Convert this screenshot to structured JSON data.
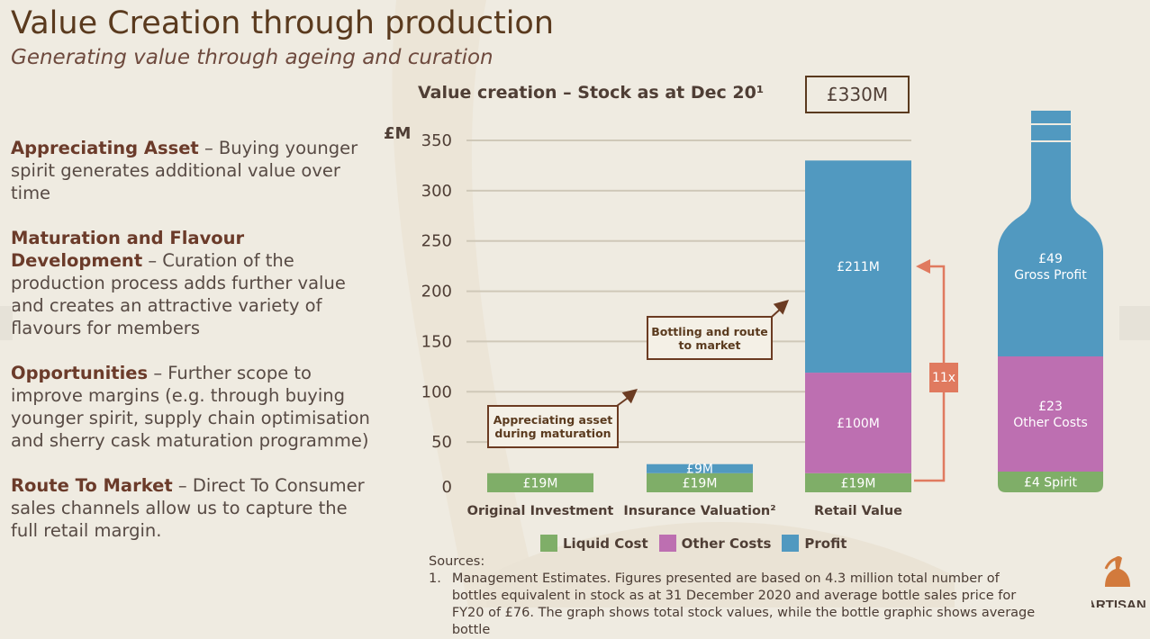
{
  "slide": {
    "title": "Value Creation through production",
    "subtitle": "Generating value through ageing and curation"
  },
  "bullets": [
    {
      "heading": "Appreciating Asset",
      "text": " – Buying younger spirit generates additional value over time"
    },
    {
      "heading": "Maturation and Flavour Development",
      "text": " – Curation of the production process adds further value and creates an attractive variety of flavours for members"
    },
    {
      "heading": "Opportunities",
      "text": " – Further scope to improve margins (e.g. through buying younger spirit, supply chain optimisation and sherry cask maturation programme)"
    },
    {
      "heading": "Route To Market",
      "text": " – Direct To Consumer sales channels allow us to capture the full retail margin."
    }
  ],
  "chart_data": {
    "type": "bar",
    "stacked": true,
    "title": "Value creation – Stock as at Dec 20¹",
    "total_label": "£330M",
    "ylabel": "£M",
    "ylim": [
      0,
      350
    ],
    "yticks": [
      0,
      50,
      100,
      150,
      200,
      250,
      300,
      350
    ],
    "grid": true,
    "categories": [
      "Original Investment",
      "Insurance Valuation²",
      "Retail Value"
    ],
    "series": [
      {
        "name": "Liquid Cost",
        "color": "#7fae68",
        "values": [
          19,
          19,
          19
        ],
        "labels": [
          "£19M",
          "£19M",
          "£19M"
        ]
      },
      {
        "name": "Other Costs",
        "color": "#bd6fb1",
        "values": [
          0,
          0,
          100
        ],
        "labels": [
          "",
          "",
          "£100M"
        ]
      },
      {
        "name": "Profit",
        "color": "#5199c0",
        "values": [
          0,
          9,
          211
        ],
        "labels": [
          "",
          "£9M",
          "£211M"
        ]
      }
    ],
    "legend_position": "bottom",
    "callouts": [
      "Appreciating asset\nduring maturation",
      "Bottling and route\nto market"
    ],
    "ratio_label": "11x",
    "bottle": {
      "segments": [
        {
          "label": "£4 Spirit",
          "value": 4,
          "color": "#7fae68"
        },
        {
          "label": "£23\nOther Costs",
          "value": 23,
          "color": "#bd6fb1"
        },
        {
          "label": "£49\nGross Profit",
          "value": 49,
          "color": "#5199c0"
        }
      ]
    }
  },
  "sources": {
    "heading": "Sources:",
    "items": [
      {
        "num": "1.",
        "text": "Management Estimates. Figures presented are based on 4.3 million total number of bottles equivalent in stock as at 31 December 2020 and average bottle sales price for FY20 of £76. The graph shows total stock values, while the bottle graphic shows average bottle"
      }
    ]
  },
  "colors": {
    "title": "#5a3a1e",
    "accent_arrow": "#6b3b22",
    "ratio": "#e07a5f",
    "background": "#efebe1"
  },
  "icons": [
    "copper-still-logo-icon"
  ],
  "logo_text": "ARTISAN"
}
